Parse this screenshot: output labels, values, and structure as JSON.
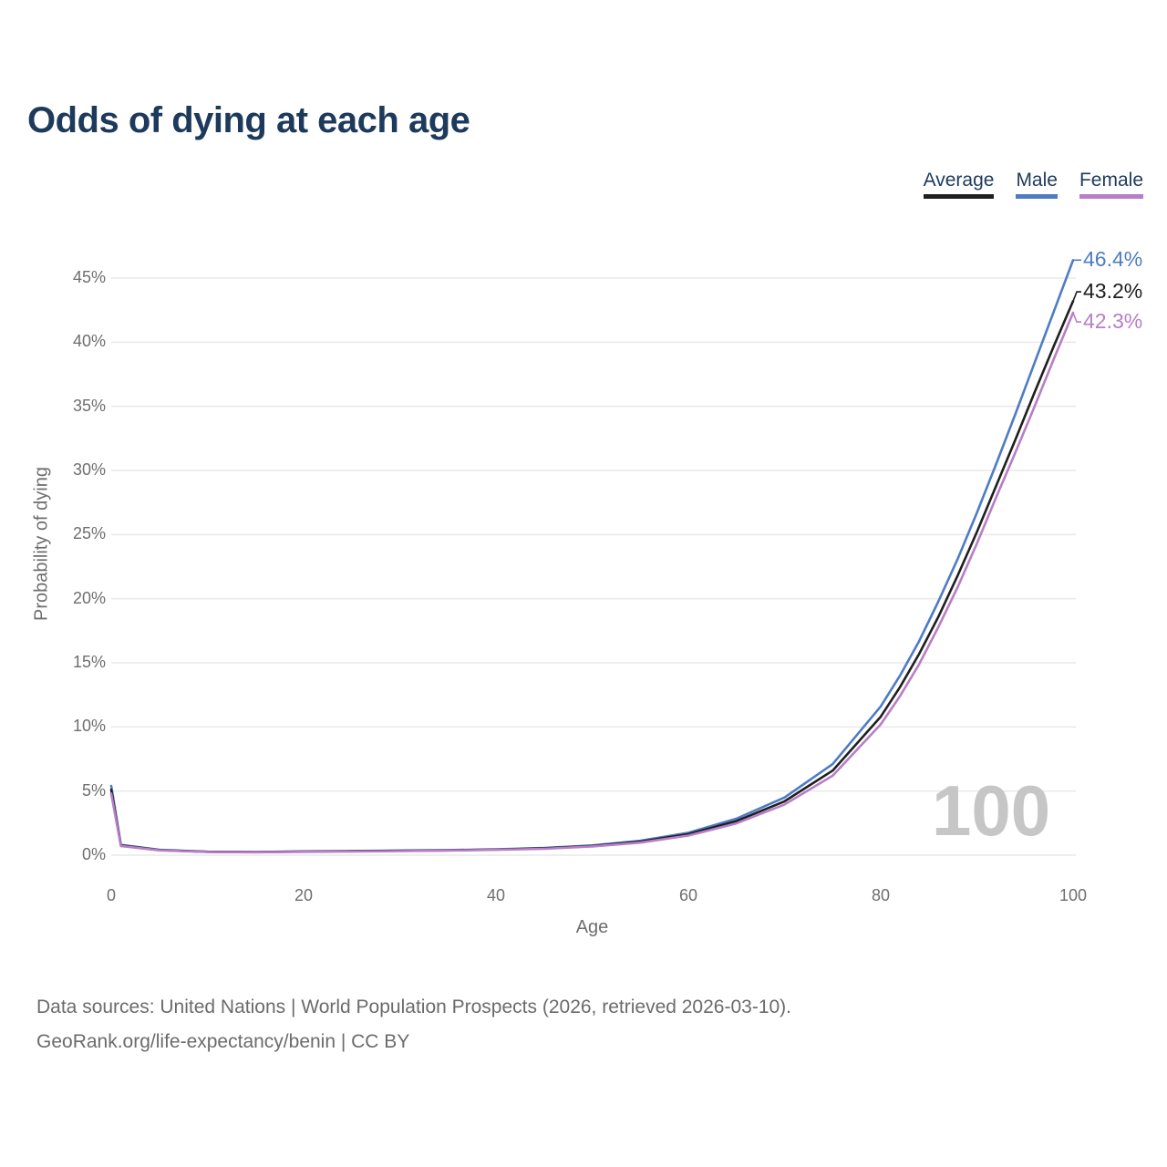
{
  "page": {
    "title": "Odds of dying at each age"
  },
  "legend": {
    "items": [
      {
        "label": "Average",
        "color": "#1f1f1f"
      },
      {
        "label": "Male",
        "color": "#4d7cc5"
      },
      {
        "label": "Female",
        "color": "#b87ec6"
      }
    ]
  },
  "chart_data": {
    "type": "line",
    "title": "Odds of dying at each age",
    "xlabel": "Age",
    "ylabel": "Probability of dying",
    "xlim": [
      0,
      100
    ],
    "ylim_pct": [
      0,
      46.5
    ],
    "x_ticks": [
      0,
      20,
      40,
      60,
      80,
      100
    ],
    "y_ticks_pct": [
      0,
      5,
      10,
      15,
      20,
      25,
      30,
      35,
      40,
      45
    ],
    "grid": "horizontal",
    "legend_position": "top-right",
    "watermark": "100",
    "ages": [
      0,
      1,
      5,
      10,
      15,
      20,
      25,
      30,
      35,
      40,
      45,
      50,
      55,
      60,
      65,
      70,
      75,
      80,
      82,
      84,
      86,
      88,
      90,
      92,
      94,
      96,
      98,
      100
    ],
    "series": [
      {
        "name": "Average",
        "color": "#1f1f1f",
        "end_label": "43.2%",
        "values_pct": [
          5.1,
          0.76,
          0.4,
          0.26,
          0.24,
          0.28,
          0.31,
          0.34,
          0.38,
          0.44,
          0.53,
          0.72,
          1.05,
          1.64,
          2.66,
          4.2,
          6.6,
          10.8,
          13.1,
          15.7,
          18.6,
          21.8,
          25.2,
          28.8,
          32.4,
          36.1,
          39.7,
          43.2
        ]
      },
      {
        "name": "Male",
        "color": "#4d7cc5",
        "end_label": "46.4%",
        "values_pct": [
          5.4,
          0.8,
          0.42,
          0.27,
          0.25,
          0.3,
          0.33,
          0.36,
          0.4,
          0.46,
          0.56,
          0.76,
          1.12,
          1.75,
          2.85,
          4.5,
          7.1,
          11.6,
          14.0,
          16.7,
          19.8,
          23.1,
          26.7,
          30.5,
          34.4,
          38.4,
          42.4,
          46.4
        ]
      },
      {
        "name": "Female",
        "color": "#b87ec6",
        "end_label": "42.3%",
        "values_pct": [
          4.8,
          0.72,
          0.38,
          0.25,
          0.23,
          0.26,
          0.29,
          0.32,
          0.36,
          0.42,
          0.5,
          0.68,
          0.98,
          1.53,
          2.48,
          3.95,
          6.2,
          10.2,
          12.4,
          14.9,
          17.8,
          20.9,
          24.3,
          27.9,
          31.4,
          35.0,
          38.7,
          42.3
        ]
      }
    ]
  },
  "footer": {
    "line1": "Data sources: United Nations | World Population Prospects (2026, retrieved 2026-03-10).",
    "line2": "GeoRank.org/life-expectancy/benin | CC BY"
  }
}
